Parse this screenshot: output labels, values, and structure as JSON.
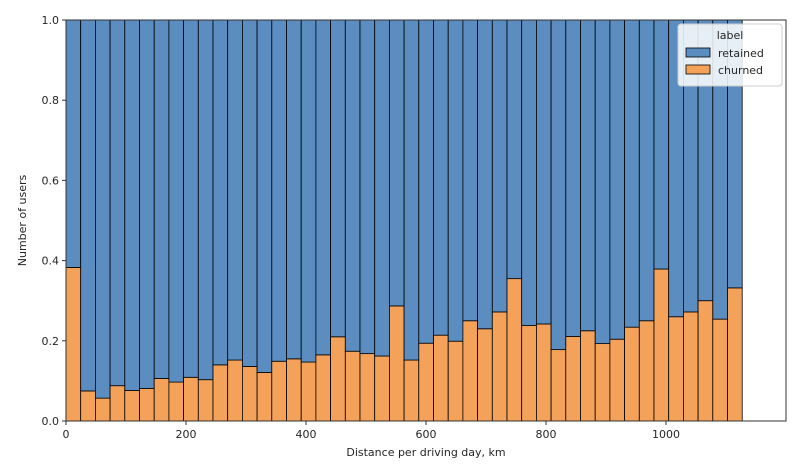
{
  "chart_data": {
    "type": "bar",
    "stacked": true,
    "normalized": true,
    "xlabel": "Distance per driving day, km",
    "ylabel": "Number of users",
    "xlim": [
      0,
      1200
    ],
    "ylim": [
      0,
      1.0
    ],
    "xticks": [
      0,
      200,
      400,
      600,
      800,
      1000
    ],
    "yticks": [
      0.0,
      0.2,
      0.4,
      0.6,
      0.8,
      1.0
    ],
    "xtick_labels": [
      "0",
      "200",
      "400",
      "600",
      "800",
      "1000"
    ],
    "ytick_labels": [
      "0.0",
      "0.2",
      "0.4",
      "0.6",
      "0.8",
      "1.0"
    ],
    "bin_width": 24.5,
    "bin_start": 0,
    "legend": {
      "title": "label",
      "placement": "top-right",
      "entries": [
        "retained",
        "churned"
      ]
    },
    "series": [
      {
        "name": "churned",
        "color": "#f4a25a",
        "values": [
          0.383,
          0.075,
          0.057,
          0.088,
          0.076,
          0.081,
          0.106,
          0.097,
          0.109,
          0.103,
          0.14,
          0.152,
          0.136,
          0.121,
          0.149,
          0.155,
          0.147,
          0.165,
          0.21,
          0.174,
          0.168,
          0.162,
          0.287,
          0.152,
          0.194,
          0.214,
          0.199,
          0.25,
          0.23,
          0.272,
          0.355,
          0.238,
          0.242,
          0.178,
          0.211,
          0.225,
          0.193,
          0.204,
          0.234,
          0.25,
          0.379,
          0.26,
          0.272,
          0.3,
          0.254,
          0.332
        ]
      },
      {
        "name": "retained",
        "color": "#5b8dc0",
        "values": [
          0.617,
          0.925,
          0.943,
          0.912,
          0.924,
          0.919,
          0.894,
          0.903,
          0.891,
          0.897,
          0.86,
          0.848,
          0.864,
          0.879,
          0.851,
          0.845,
          0.853,
          0.835,
          0.79,
          0.826,
          0.832,
          0.838,
          0.713,
          0.848,
          0.806,
          0.786,
          0.801,
          0.75,
          0.77,
          0.728,
          0.645,
          0.762,
          0.758,
          0.822,
          0.789,
          0.775,
          0.807,
          0.796,
          0.766,
          0.75,
          0.621,
          0.74,
          0.728,
          0.7,
          0.746,
          0.668
        ]
      }
    ]
  }
}
